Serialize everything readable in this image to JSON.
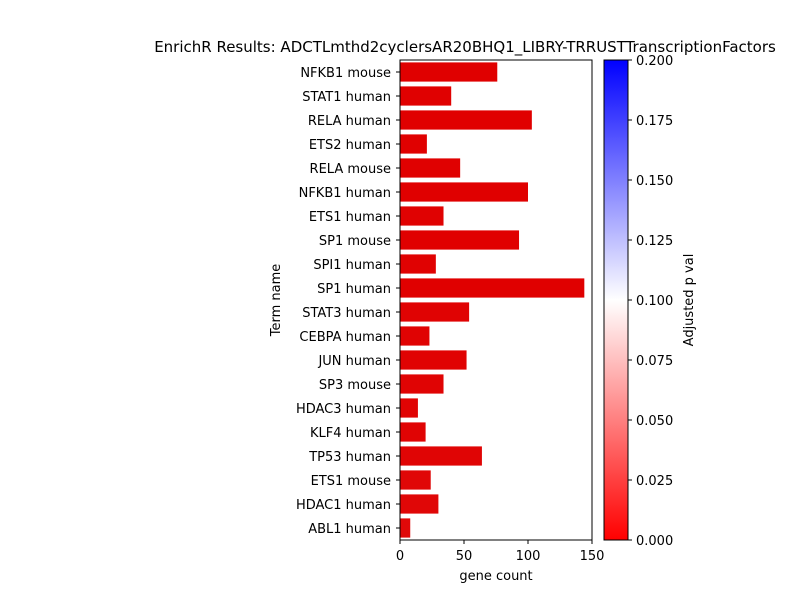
{
  "chart_data": {
    "type": "bar",
    "orientation": "horizontal",
    "title": "EnrichR Results: ADCTLmthd2cyclersAR20BHQ1_LIBRY-TRRUSTTranscriptionFactors",
    "xlabel": "gene count",
    "ylabel": "Term name",
    "xlim": [
      0,
      150
    ],
    "xticks": [
      0,
      50,
      100,
      150
    ],
    "categories": [
      "NFKB1 mouse",
      "STAT1 human",
      "RELA human",
      "ETS2 human",
      "RELA mouse",
      "NFKB1 human",
      "ETS1 human",
      "SP1 mouse",
      "SPI1 human",
      "SP1 human",
      "STAT3 human",
      "CEBPA human",
      "JUN human",
      "SP3 mouse",
      "HDAC3 human",
      "KLF4 human",
      "TP53 human",
      "ETS1 mouse",
      "HDAC1 human",
      "ABL1 human"
    ],
    "values": [
      76,
      40,
      103,
      21,
      47,
      100,
      34,
      93,
      28,
      144,
      54,
      23,
      52,
      34,
      14,
      20,
      64,
      24,
      30,
      8
    ],
    "adjusted_p": [
      0.0001,
      0.0002,
      0.0001,
      0.0005,
      0.0003,
      0.0001,
      0.0008,
      0.0001,
      0.0009,
      0.0001,
      0.001,
      0.0012,
      0.0012,
      0.0015,
      0.002,
      0.002,
      0.0025,
      0.003,
      0.003,
      0.004
    ],
    "colorbar": {
      "label": "Adjusted p val",
      "range": [
        0.0,
        0.2
      ],
      "ticks": [
        "0.000",
        "0.025",
        "0.050",
        "0.075",
        "0.100",
        "0.125",
        "0.150",
        "0.175",
        "0.200"
      ],
      "colormap": "bwr_r",
      "low_color": "#ff0000",
      "mid_color": "#ffffff",
      "high_color": "#0000ff"
    },
    "grid": false,
    "legend": "none"
  }
}
